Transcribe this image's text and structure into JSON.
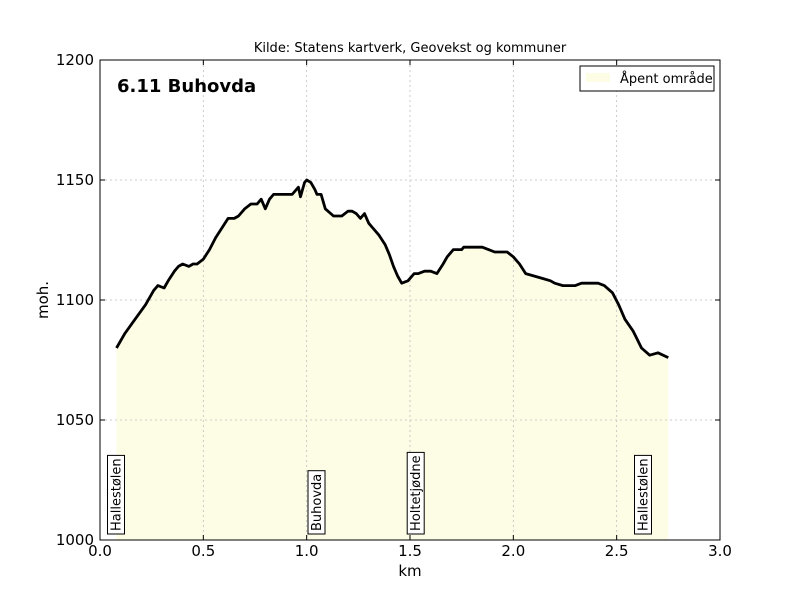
{
  "chart_data": {
    "type": "area",
    "title": "Kilde: Statens kartverk, Geovekst og kommuner",
    "annotation_title": "6.11 Buhovda",
    "xlabel": "km",
    "ylabel": "moh.",
    "xlim": [
      0.0,
      3.0
    ],
    "ylim": [
      1000,
      1200
    ],
    "xticks": [
      "0.0",
      "0.5",
      "1.0",
      "1.5",
      "2.0",
      "2.5",
      "3.0"
    ],
    "yticks": [
      "1000",
      "1050",
      "1100",
      "1150",
      "1200"
    ],
    "grid": true,
    "legend_position": "top-right",
    "legend": [
      "Åpent område"
    ],
    "colors": {
      "fill": "#fdfde6",
      "line": "#000000"
    },
    "series": [
      {
        "name": "Åpent område",
        "x": [
          0.08,
          0.12,
          0.17,
          0.22,
          0.26,
          0.28,
          0.31,
          0.33,
          0.36,
          0.38,
          0.4,
          0.43,
          0.45,
          0.47,
          0.5,
          0.53,
          0.56,
          0.59,
          0.62,
          0.65,
          0.67,
          0.7,
          0.73,
          0.76,
          0.78,
          0.8,
          0.82,
          0.84,
          0.87,
          0.9,
          0.93,
          0.95,
          0.96,
          0.97,
          0.98,
          0.99,
          1.0,
          1.02,
          1.04,
          1.05,
          1.07,
          1.09,
          1.13,
          1.17,
          1.2,
          1.22,
          1.24,
          1.26,
          1.28,
          1.3,
          1.32,
          1.35,
          1.38,
          1.4,
          1.42,
          1.44,
          1.46,
          1.49,
          1.5,
          1.51,
          1.52,
          1.54,
          1.57,
          1.6,
          1.63,
          1.66,
          1.68,
          1.71,
          1.74,
          1.75,
          1.76,
          1.79,
          1.82,
          1.85,
          1.88,
          1.91,
          1.94,
          1.97,
          2.0,
          2.03,
          2.06,
          2.1,
          2.14,
          2.18,
          2.2,
          2.24,
          2.28,
          2.3,
          2.33,
          2.37,
          2.41,
          2.44,
          2.48,
          2.51,
          2.54,
          2.58,
          2.62,
          2.66,
          2.7,
          2.75
        ],
        "y": [
          1080,
          1086,
          1092,
          1098,
          1104,
          1106,
          1105,
          1108,
          1112,
          1114,
          1115,
          1114,
          1115,
          1115,
          1117,
          1121,
          1126,
          1130,
          1134,
          1134,
          1135,
          1138,
          1140,
          1140,
          1142,
          1138,
          1142,
          1144,
          1144,
          1144,
          1144,
          1146,
          1147,
          1143,
          1146,
          1149,
          1150,
          1149,
          1146,
          1144,
          1144,
          1138,
          1135,
          1135,
          1137,
          1137,
          1136,
          1134,
          1136,
          1132,
          1130,
          1127,
          1123,
          1119,
          1114,
          1110,
          1107,
          1108,
          1109,
          1110,
          1111,
          1111,
          1112,
          1112,
          1111,
          1115,
          1118,
          1121,
          1121,
          1121,
          1122,
          1122,
          1122,
          1122,
          1121,
          1120,
          1120,
          1120,
          1118,
          1115,
          1111,
          1110,
          1109,
          1108,
          1107,
          1106,
          1106,
          1106,
          1107,
          1107,
          1107,
          1106,
          1103,
          1098,
          1092,
          1087,
          1080,
          1077,
          1078,
          1076
        ]
      }
    ],
    "place_labels": [
      {
        "x": 0.08,
        "label": "Hallestølen"
      },
      {
        "x": 1.05,
        "label": "Buhovda"
      },
      {
        "x": 1.53,
        "label": "Holtetjødne"
      },
      {
        "x": 2.63,
        "label": "Hallestølen"
      }
    ]
  }
}
